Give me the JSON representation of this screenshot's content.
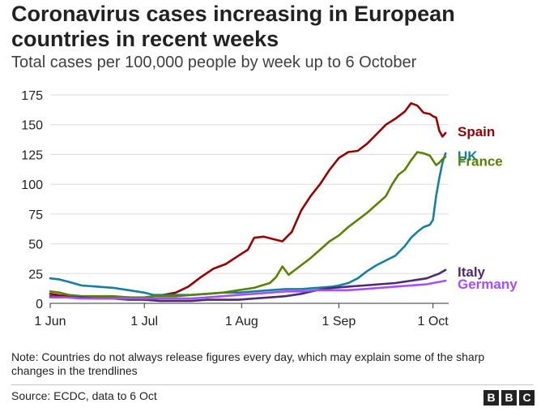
{
  "chart_data": {
    "type": "line",
    "title": "Coronavirus cases increasing in European countries in recent weeks",
    "subtitle": "Total cases per 100,000 people by week up to 6 October",
    "x_unit": "days since 1 June",
    "xlim": [
      0,
      127
    ],
    "ylim": [
      0,
      175
    ],
    "y_ticks": [
      0,
      25,
      50,
      75,
      100,
      125,
      150,
      175
    ],
    "x_ticks": [
      {
        "label": "1 Jun",
        "day": 0
      },
      {
        "label": "1 Jul",
        "day": 30
      },
      {
        "label": "1 Aug",
        "day": 61
      },
      {
        "label": "1 Sep",
        "day": 92
      },
      {
        "label": "1 Oct",
        "day": 122
      }
    ],
    "grid": true,
    "legend": "inline-right",
    "series": [
      {
        "name": "Spain",
        "color": "#990000",
        "points": [
          [
            0,
            8
          ],
          [
            5,
            6
          ],
          [
            10,
            5
          ],
          [
            15,
            5
          ],
          [
            20,
            5
          ],
          [
            25,
            5
          ],
          [
            30,
            4
          ],
          [
            33,
            6
          ],
          [
            36,
            7
          ],
          [
            40,
            9
          ],
          [
            44,
            14
          ],
          [
            48,
            22
          ],
          [
            52,
            29
          ],
          [
            56,
            33
          ],
          [
            60,
            40
          ],
          [
            63,
            45
          ],
          [
            65,
            55
          ],
          [
            68,
            56
          ],
          [
            71,
            54
          ],
          [
            74,
            52
          ],
          [
            77,
            60
          ],
          [
            80,
            78
          ],
          [
            83,
            90
          ],
          [
            86,
            100
          ],
          [
            89,
            112
          ],
          [
            92,
            122
          ],
          [
            95,
            127
          ],
          [
            98,
            128
          ],
          [
            101,
            134
          ],
          [
            104,
            142
          ],
          [
            107,
            150
          ],
          [
            110,
            155
          ],
          [
            113,
            161
          ],
          [
            115,
            168
          ],
          [
            117,
            166
          ],
          [
            119,
            160
          ],
          [
            121,
            159
          ],
          [
            122,
            157
          ],
          [
            123,
            156
          ],
          [
            124,
            145
          ],
          [
            125,
            140
          ],
          [
            126,
            143
          ]
        ]
      },
      {
        "name": "UK",
        "color": "#1380a1",
        "points": [
          [
            0,
            21
          ],
          [
            3,
            20
          ],
          [
            6,
            18
          ],
          [
            10,
            15
          ],
          [
            15,
            14
          ],
          [
            20,
            13
          ],
          [
            25,
            11
          ],
          [
            30,
            9
          ],
          [
            33,
            7
          ],
          [
            36,
            7
          ],
          [
            40,
            7
          ],
          [
            45,
            7
          ],
          [
            50,
            8
          ],
          [
            55,
            9
          ],
          [
            60,
            9
          ],
          [
            65,
            10
          ],
          [
            70,
            11
          ],
          [
            75,
            12
          ],
          [
            80,
            12
          ],
          [
            85,
            13
          ],
          [
            90,
            14
          ],
          [
            92,
            15
          ],
          [
            95,
            17
          ],
          [
            98,
            21
          ],
          [
            101,
            27
          ],
          [
            104,
            32
          ],
          [
            107,
            36
          ],
          [
            110,
            40
          ],
          [
            113,
            48
          ],
          [
            115,
            55
          ],
          [
            117,
            60
          ],
          [
            119,
            64
          ],
          [
            121,
            66
          ],
          [
            122,
            70
          ],
          [
            123,
            90
          ],
          [
            124,
            105
          ],
          [
            125,
            118
          ],
          [
            126,
            126
          ]
        ]
      },
      {
        "name": "France",
        "color": "#588300",
        "points": [
          [
            0,
            10
          ],
          [
            3,
            9
          ],
          [
            6,
            7
          ],
          [
            10,
            6
          ],
          [
            15,
            6
          ],
          [
            20,
            6
          ],
          [
            25,
            5
          ],
          [
            30,
            5
          ],
          [
            33,
            6
          ],
          [
            36,
            6
          ],
          [
            40,
            6
          ],
          [
            45,
            7
          ],
          [
            50,
            8
          ],
          [
            55,
            9
          ],
          [
            60,
            11
          ],
          [
            65,
            13
          ],
          [
            70,
            17
          ],
          [
            72,
            22
          ],
          [
            74,
            31
          ],
          [
            76,
            24
          ],
          [
            78,
            28
          ],
          [
            80,
            32
          ],
          [
            83,
            38
          ],
          [
            86,
            45
          ],
          [
            89,
            52
          ],
          [
            92,
            57
          ],
          [
            95,
            64
          ],
          [
            98,
            70
          ],
          [
            101,
            76
          ],
          [
            104,
            83
          ],
          [
            107,
            90
          ],
          [
            109,
            100
          ],
          [
            111,
            108
          ],
          [
            113,
            112
          ],
          [
            115,
            120
          ],
          [
            117,
            127
          ],
          [
            119,
            126
          ],
          [
            121,
            124
          ],
          [
            122,
            120
          ],
          [
            123,
            116
          ],
          [
            124,
            118
          ],
          [
            125,
            121
          ],
          [
            126,
            123
          ]
        ]
      },
      {
        "name": "Italy",
        "color": "#4b2a70",
        "points": [
          [
            0,
            6
          ],
          [
            5,
            5
          ],
          [
            10,
            5
          ],
          [
            15,
            4
          ],
          [
            20,
            4
          ],
          [
            25,
            3
          ],
          [
            30,
            3
          ],
          [
            35,
            2
          ],
          [
            40,
            2
          ],
          [
            45,
            2
          ],
          [
            50,
            3
          ],
          [
            55,
            3
          ],
          [
            60,
            3
          ],
          [
            65,
            4
          ],
          [
            70,
            5
          ],
          [
            75,
            6
          ],
          [
            80,
            8
          ],
          [
            85,
            11
          ],
          [
            90,
            13
          ],
          [
            95,
            14
          ],
          [
            100,
            15
          ],
          [
            105,
            16
          ],
          [
            110,
            17
          ],
          [
            115,
            19
          ],
          [
            120,
            21
          ],
          [
            122,
            23
          ],
          [
            124,
            25
          ],
          [
            126,
            28
          ]
        ]
      },
      {
        "name": "Germany",
        "color": "#a64dff",
        "points": [
          [
            0,
            5
          ],
          [
            5,
            5
          ],
          [
            10,
            4
          ],
          [
            15,
            4
          ],
          [
            20,
            4
          ],
          [
            25,
            4
          ],
          [
            30,
            4
          ],
          [
            35,
            4
          ],
          [
            40,
            4
          ],
          [
            45,
            4
          ],
          [
            50,
            5
          ],
          [
            55,
            6
          ],
          [
            60,
            7
          ],
          [
            65,
            8
          ],
          [
            70,
            9
          ],
          [
            75,
            10
          ],
          [
            80,
            10
          ],
          [
            85,
            11
          ],
          [
            90,
            11
          ],
          [
            95,
            11
          ],
          [
            100,
            12
          ],
          [
            105,
            13
          ],
          [
            110,
            14
          ],
          [
            115,
            15
          ],
          [
            120,
            16
          ],
          [
            122,
            17
          ],
          [
            124,
            18
          ],
          [
            126,
            19
          ]
        ]
      }
    ]
  },
  "note": "Note: Countries do not always release figures every day, which may explain some of the sharp changes in the trendlines",
  "source": "Source: ECDC, data to 6 Oct",
  "logo": {
    "letters": [
      "B",
      "B",
      "C"
    ]
  }
}
